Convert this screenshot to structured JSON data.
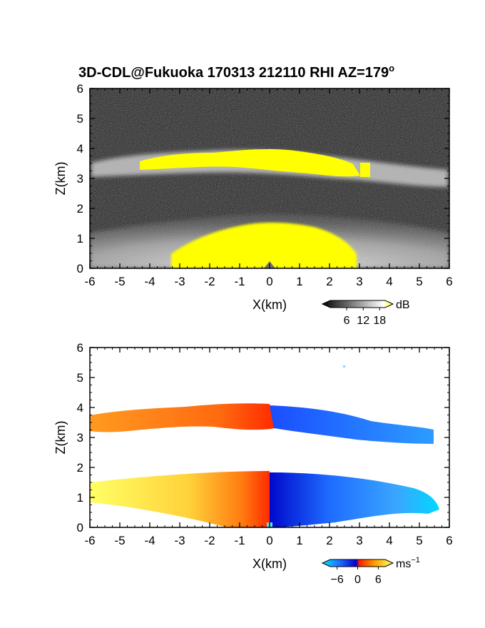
{
  "figure": {
    "title": "3D-CDL@Fukuoka 170313 212110 RHI AZ=179",
    "title_superscript": "o"
  },
  "chart_data": [
    {
      "type": "heatmap",
      "quantity": "backscatter intensity",
      "xlabel": "X(km)",
      "ylabel": "Z(km)",
      "xlim": [
        -6,
        6
      ],
      "ylim": [
        0,
        6
      ],
      "xticks": [
        "-6",
        "-5",
        "-4",
        "-3",
        "-2",
        "-1",
        "0",
        "1",
        "2",
        "3",
        "4",
        "5",
        "6"
      ],
      "yticks": [
        "0",
        "1",
        "2",
        "3",
        "4",
        "5",
        "6"
      ],
      "colorbar": {
        "unit": "dB",
        "ticks": [
          "6",
          "12",
          "18"
        ],
        "tick_values": [
          6,
          12,
          18
        ],
        "range": [
          0,
          20
        ],
        "colors": [
          "#000000",
          "#ffffff",
          "#ffff00"
        ]
      },
      "features": {
        "elevated_layer_z_km": [
          3.0,
          4.0
        ],
        "saturated_layer_x_km": [
          -4.2,
          3.3
        ],
        "boundary_layer_top_km": 1.7,
        "near_radar_saturation_top_km": 1.4
      }
    },
    {
      "type": "heatmap",
      "quantity": "radial velocity",
      "xlabel": "X(km)",
      "ylabel": "Z(km)",
      "xlim": [
        -6,
        6
      ],
      "ylim": [
        0,
        6
      ],
      "xticks": [
        "-6",
        "-5",
        "-4",
        "-3",
        "-2",
        "-1",
        "0",
        "1",
        "2",
        "3",
        "4",
        "5",
        "6"
      ],
      "yticks": [
        "0",
        "1",
        "2",
        "3",
        "4",
        "5",
        "6"
      ],
      "colorbar": {
        "unit": "ms",
        "unit_exponent": "−1",
        "ticks": [
          "−6",
          "0",
          "6"
        ],
        "tick_values": [
          -6,
          0,
          6
        ],
        "range": [
          -8,
          8
        ],
        "colors": [
          "#00e5ff",
          "#1e6bff",
          "#0000cc",
          "#ff1a00",
          "#ffa500",
          "#ffff66"
        ]
      },
      "features": {
        "upper_layer_velocity_west_ms": 4,
        "upper_layer_velocity_east_ms": -5,
        "lower_layer_velocity_west_ms": 6,
        "lower_layer_velocity_east_ms": -6
      }
    }
  ]
}
